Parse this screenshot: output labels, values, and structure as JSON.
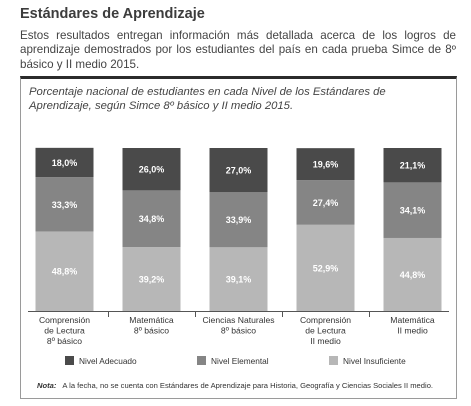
{
  "heading": "Estándares de Aprendizaje",
  "intro": "Estos resultados entregan información más detallada acerca de los logros de aprendizaje demostrados por los estudiantes del país en cada prueba Simce de 8º básico y II medio 2015.",
  "footnote": {
    "label": "Nota:",
    "text": "A la fecha, no se cuenta con Estándares de Aprendizaje para Historia, Geografía y Ciencias Sociales II medio."
  },
  "colors": {
    "adecuado": "#4a4a4a",
    "elemental": "#858585",
    "insuficiente": "#b7b7b7",
    "axis": "#555555"
  },
  "chart_data": {
    "type": "bar",
    "stacked": true,
    "orientation": "vertical",
    "title": "Porcentaje nacional de estudiantes en cada Nivel de los Estándares de Aprendizaje, según Simce 8º básico y II medio 2015.",
    "categories": [
      [
        "Comprensión",
        "de Lectura",
        "8º básico"
      ],
      [
        "Matemática",
        "8º básico"
      ],
      [
        "Ciencias Naturales",
        "8º básico"
      ],
      [
        "Comprensión",
        "de Lectura",
        "II medio"
      ],
      [
        "Matemática",
        "II medio"
      ]
    ],
    "series": [
      {
        "name": "Nivel Insuficiente",
        "key": "insuficiente",
        "values": [
          48.8,
          39.2,
          39.1,
          52.9,
          44.8
        ],
        "labels": [
          "48,8%",
          "39,2%",
          "39,1%",
          "52,9%",
          "44,8%"
        ]
      },
      {
        "name": "Nivel Elemental",
        "key": "elemental",
        "values": [
          33.3,
          34.8,
          33.9,
          27.4,
          34.1
        ],
        "labels": [
          "33,3%",
          "34,8%",
          "33,9%",
          "27,4%",
          "34,1%"
        ]
      },
      {
        "name": "Nivel Adecuado",
        "key": "adecuado",
        "values": [
          18.0,
          26.0,
          27.0,
          19.6,
          21.1
        ],
        "labels": [
          "18,0%",
          "26,0%",
          "27,0%",
          "19,6%",
          "21,1%"
        ]
      }
    ],
    "ylim": [
      0,
      100
    ],
    "legend_order": [
      "Nivel Adecuado",
      "Nivel Elemental",
      "Nivel Insuficiente"
    ],
    "legend_position": "bottom",
    "grid": false
  }
}
